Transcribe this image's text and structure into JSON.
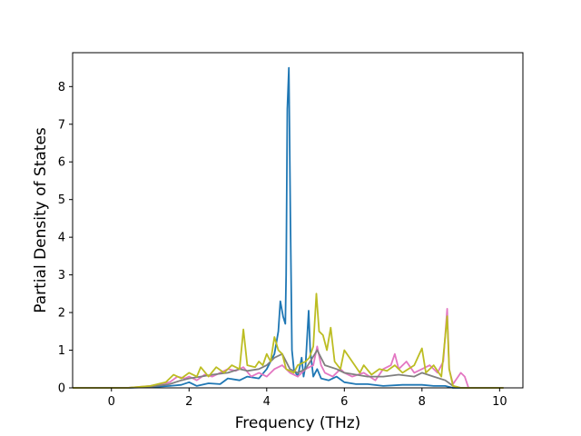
{
  "chart_data": {
    "type": "line",
    "title": "",
    "xlabel": "Frequency (THz)",
    "ylabel": "Partial Density of States",
    "xlim": [
      -1.0,
      10.6
    ],
    "ylim": [
      0,
      8.9
    ],
    "xticks": [
      0,
      2,
      4,
      6,
      8,
      10
    ],
    "xtick_labels": [
      "0",
      "2",
      "4",
      "6",
      "8",
      "10"
    ],
    "yticks": [
      0,
      1,
      2,
      3,
      4,
      5,
      6,
      7,
      8
    ],
    "ytick_labels": [
      "0",
      "1",
      "2",
      "3",
      "4",
      "5",
      "6",
      "7",
      "8"
    ],
    "grid": false,
    "series": [
      {
        "color": "#1f77b4",
        "points": [
          [
            -1.0,
            0
          ],
          [
            0.4,
            0
          ],
          [
            1.0,
            0.02
          ],
          [
            1.5,
            0.05
          ],
          [
            1.8,
            0.08
          ],
          [
            2.0,
            0.15
          ],
          [
            2.2,
            0.05
          ],
          [
            2.5,
            0.12
          ],
          [
            2.8,
            0.1
          ],
          [
            3.0,
            0.25
          ],
          [
            3.3,
            0.2
          ],
          [
            3.5,
            0.3
          ],
          [
            3.8,
            0.25
          ],
          [
            4.0,
            0.5
          ],
          [
            4.2,
            0.9
          ],
          [
            4.3,
            1.5
          ],
          [
            4.35,
            2.3
          ],
          [
            4.42,
            1.9
          ],
          [
            4.48,
            1.7
          ],
          [
            4.5,
            3.0
          ],
          [
            4.53,
            7.4
          ],
          [
            4.57,
            8.5
          ],
          [
            4.61,
            4.5
          ],
          [
            4.65,
            1.0
          ],
          [
            4.7,
            0.5
          ],
          [
            4.8,
            0.3
          ],
          [
            4.9,
            0.8
          ],
          [
            4.95,
            0.3
          ],
          [
            5.0,
            0.6
          ],
          [
            5.05,
            1.5
          ],
          [
            5.08,
            2.05
          ],
          [
            5.12,
            1.0
          ],
          [
            5.2,
            0.3
          ],
          [
            5.3,
            0.5
          ],
          [
            5.4,
            0.25
          ],
          [
            5.6,
            0.2
          ],
          [
            5.8,
            0.3
          ],
          [
            6.0,
            0.15
          ],
          [
            6.3,
            0.1
          ],
          [
            6.6,
            0.1
          ],
          [
            7.0,
            0.05
          ],
          [
            7.5,
            0.08
          ],
          [
            8.0,
            0.08
          ],
          [
            8.3,
            0.05
          ],
          [
            8.6,
            0.05
          ],
          [
            8.8,
            0
          ],
          [
            10.1,
            0
          ]
        ]
      },
      {
        "color": "#e377c2",
        "points": [
          [
            -1.0,
            0
          ],
          [
            0.4,
            0
          ],
          [
            1.0,
            0.05
          ],
          [
            1.5,
            0.15
          ],
          [
            1.7,
            0.3
          ],
          [
            1.9,
            0.25
          ],
          [
            2.0,
            0.3
          ],
          [
            2.2,
            0.2
          ],
          [
            2.4,
            0.35
          ],
          [
            2.6,
            0.3
          ],
          [
            2.8,
            0.4
          ],
          [
            3.0,
            0.5
          ],
          [
            3.2,
            0.45
          ],
          [
            3.4,
            0.55
          ],
          [
            3.6,
            0.3
          ],
          [
            3.8,
            0.4
          ],
          [
            4.0,
            0.3
          ],
          [
            4.2,
            0.5
          ],
          [
            4.4,
            0.6
          ],
          [
            4.6,
            0.4
          ],
          [
            4.8,
            0.3
          ],
          [
            5.0,
            0.5
          ],
          [
            5.2,
            0.6
          ],
          [
            5.3,
            1.1
          ],
          [
            5.4,
            0.6
          ],
          [
            5.5,
            0.4
          ],
          [
            5.7,
            0.3
          ],
          [
            5.9,
            0.5
          ],
          [
            6.0,
            0.4
          ],
          [
            6.2,
            0.3
          ],
          [
            6.5,
            0.4
          ],
          [
            6.8,
            0.2
          ],
          [
            7.0,
            0.5
          ],
          [
            7.2,
            0.6
          ],
          [
            7.3,
            0.9
          ],
          [
            7.4,
            0.5
          ],
          [
            7.6,
            0.7
          ],
          [
            7.8,
            0.4
          ],
          [
            8.0,
            0.5
          ],
          [
            8.2,
            0.6
          ],
          [
            8.4,
            0.4
          ],
          [
            8.55,
            0.7
          ],
          [
            8.65,
            2.1
          ],
          [
            8.7,
            0.5
          ],
          [
            8.8,
            0.1
          ],
          [
            9.0,
            0.4
          ],
          [
            9.1,
            0.3
          ],
          [
            9.2,
            0
          ],
          [
            10.1,
            0
          ]
        ]
      },
      {
        "color": "#7f7f7f",
        "points": [
          [
            -1.0,
            0
          ],
          [
            0.4,
            0
          ],
          [
            1.0,
            0.03
          ],
          [
            1.5,
            0.1
          ],
          [
            1.8,
            0.2
          ],
          [
            2.0,
            0.25
          ],
          [
            2.3,
            0.3
          ],
          [
            2.6,
            0.35
          ],
          [
            3.0,
            0.4
          ],
          [
            3.3,
            0.5
          ],
          [
            3.5,
            0.45
          ],
          [
            3.8,
            0.5
          ],
          [
            4.0,
            0.6
          ],
          [
            4.2,
            0.8
          ],
          [
            4.4,
            0.9
          ],
          [
            4.6,
            0.5
          ],
          [
            4.8,
            0.4
          ],
          [
            5.0,
            0.5
          ],
          [
            5.3,
            1.0
          ],
          [
            5.5,
            0.6
          ],
          [
            5.8,
            0.5
          ],
          [
            6.0,
            0.4
          ],
          [
            6.3,
            0.35
          ],
          [
            6.6,
            0.3
          ],
          [
            7.0,
            0.3
          ],
          [
            7.4,
            0.35
          ],
          [
            7.8,
            0.3
          ],
          [
            8.0,
            0.4
          ],
          [
            8.3,
            0.3
          ],
          [
            8.6,
            0.2
          ],
          [
            8.8,
            0.05
          ],
          [
            9.0,
            0
          ],
          [
            10.1,
            0
          ]
        ]
      },
      {
        "color": "#bcbd22",
        "points": [
          [
            -1.0,
            0
          ],
          [
            0.4,
            0
          ],
          [
            1.0,
            0.05
          ],
          [
            1.4,
            0.15
          ],
          [
            1.6,
            0.35
          ],
          [
            1.8,
            0.25
          ],
          [
            2.0,
            0.4
          ],
          [
            2.2,
            0.3
          ],
          [
            2.3,
            0.55
          ],
          [
            2.5,
            0.3
          ],
          [
            2.7,
            0.55
          ],
          [
            2.9,
            0.4
          ],
          [
            3.1,
            0.6
          ],
          [
            3.3,
            0.5
          ],
          [
            3.4,
            1.55
          ],
          [
            3.5,
            0.6
          ],
          [
            3.7,
            0.55
          ],
          [
            3.8,
            0.7
          ],
          [
            3.9,
            0.6
          ],
          [
            4.0,
            0.9
          ],
          [
            4.1,
            0.7
          ],
          [
            4.2,
            1.35
          ],
          [
            4.3,
            1.0
          ],
          [
            4.4,
            0.9
          ],
          [
            4.5,
            0.5
          ],
          [
            4.7,
            0.4
          ],
          [
            4.8,
            0.6
          ],
          [
            5.0,
            0.7
          ],
          [
            5.1,
            0.8
          ],
          [
            5.2,
            1.1
          ],
          [
            5.28,
            2.5
          ],
          [
            5.35,
            1.5
          ],
          [
            5.45,
            1.4
          ],
          [
            5.55,
            1.0
          ],
          [
            5.65,
            1.6
          ],
          [
            5.75,
            0.7
          ],
          [
            5.9,
            0.5
          ],
          [
            6.0,
            1.0
          ],
          [
            6.2,
            0.7
          ],
          [
            6.4,
            0.4
          ],
          [
            6.5,
            0.6
          ],
          [
            6.7,
            0.35
          ],
          [
            6.9,
            0.5
          ],
          [
            7.1,
            0.45
          ],
          [
            7.3,
            0.6
          ],
          [
            7.5,
            0.4
          ],
          [
            7.8,
            0.6
          ],
          [
            8.0,
            1.05
          ],
          [
            8.1,
            0.4
          ],
          [
            8.3,
            0.6
          ],
          [
            8.5,
            0.3
          ],
          [
            8.65,
            1.9
          ],
          [
            8.7,
            0.5
          ],
          [
            8.8,
            0.05
          ],
          [
            9.0,
            0
          ],
          [
            10.1,
            0
          ]
        ]
      }
    ]
  }
}
